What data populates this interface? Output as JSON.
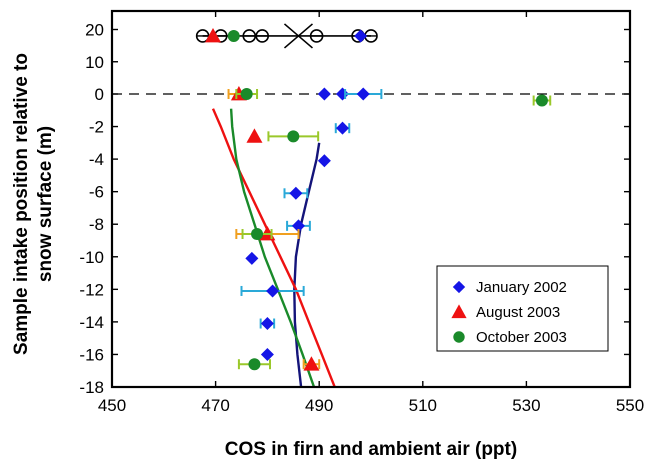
{
  "chart_data": {
    "type": "scatter",
    "xlabel": "COS in firn and ambient air (ppt)",
    "ylabel_lines": [
      "Sample intake position relative to",
      "snow surface (m)"
    ],
    "xlim": [
      450,
      550
    ],
    "ylim": [
      -18,
      24
    ],
    "xticks": [
      450,
      470,
      490,
      510,
      530,
      550
    ],
    "yticks": [
      20,
      10,
      0,
      -2,
      -4,
      -6,
      -8,
      -10,
      -12,
      -14,
      -16,
      -18
    ],
    "legend_position": "lower-right",
    "series": [
      {
        "name": "January 2002",
        "marker": "diamond",
        "color": "#1515e6",
        "errorbar_color": "#2aa9d8",
        "points": [
          {
            "x": 498.0,
            "y": 18.0,
            "xerr": 0
          },
          {
            "x": 491.0,
            "y": 0.0,
            "xerr": 0
          },
          {
            "x": 494.5,
            "y": 0.0,
            "xerr": 0
          },
          {
            "x": 498.5,
            "y": 0.0,
            "xerr": 3.5
          },
          {
            "x": 494.5,
            "y": -2.1,
            "xerr": 1.3
          },
          {
            "x": 491.0,
            "y": -4.1,
            "xerr": 0
          },
          {
            "x": 485.5,
            "y": -6.1,
            "xerr": 2.2
          },
          {
            "x": 486.0,
            "y": -8.1,
            "xerr": 2.2
          },
          {
            "x": 477.0,
            "y": -10.1,
            "xerr": 0
          },
          {
            "x": 481.0,
            "y": -12.1,
            "xerr": 6.0
          },
          {
            "x": 480.0,
            "y": -14.1,
            "xerr": 1.3
          },
          {
            "x": 480.0,
            "y": -16.0,
            "xerr": 0
          }
        ]
      },
      {
        "name": "August 2003",
        "marker": "triangle",
        "color": "#ee1111",
        "errorbar_color": "#f0a020",
        "points": [
          {
            "x": 469.5,
            "y": 18.0,
            "xerr": 0
          },
          {
            "x": 474.5,
            "y": 0.0,
            "xerr": 2.0
          },
          {
            "x": 477.5,
            "y": -2.6,
            "xerr": 0
          },
          {
            "x": 480.0,
            "y": -8.6,
            "xerr": 6.0
          },
          {
            "x": 488.5,
            "y": -16.6,
            "xerr": 1.5
          }
        ]
      },
      {
        "name": "October 2003",
        "marker": "circle",
        "color": "#1a8a2a",
        "errorbar_color": "#9ac82a",
        "points": [
          {
            "x": 473.5,
            "y": 18.0,
            "xerr": 0
          },
          {
            "x": 476.0,
            "y": 0.0,
            "xerr": 2.0
          },
          {
            "x": 533.0,
            "y": -0.4,
            "xerr": 1.6
          },
          {
            "x": 485.0,
            "y": -2.6,
            "xerr": 4.8
          },
          {
            "x": 478.0,
            "y": -8.6,
            "xerr": 2.8
          },
          {
            "x": 477.5,
            "y": -16.6,
            "xerr": 3.0
          }
        ]
      }
    ],
    "ambient_open_circles": {
      "y": 18.0,
      "x": [
        467.5,
        471.0,
        476.5,
        479.0,
        489.5,
        497.5,
        500.0
      ],
      "line_from": 467.5,
      "line_to": 500.0,
      "cross_x": 486.0
    },
    "snow_surface_line": {
      "y": 0,
      "style": "dashed"
    },
    "fit_curves": [
      {
        "color": "#14147a",
        "points": [
          [
            490,
            -3
          ],
          [
            489.5,
            -4
          ],
          [
            488,
            -6
          ],
          [
            486.5,
            -8
          ],
          [
            485.5,
            -10
          ],
          [
            485.2,
            -12
          ],
          [
            485.3,
            -14
          ],
          [
            485.8,
            -16
          ],
          [
            486.5,
            -18
          ]
        ]
      },
      {
        "color": "#ee1111",
        "points": [
          [
            469.5,
            -0.9
          ],
          [
            471,
            -2
          ],
          [
            473.5,
            -4
          ],
          [
            476.5,
            -6
          ],
          [
            479.5,
            -8
          ],
          [
            482.5,
            -10
          ],
          [
            485.5,
            -12
          ],
          [
            488,
            -14
          ],
          [
            490.5,
            -16
          ],
          [
            493,
            -18
          ]
        ]
      },
      {
        "color": "#1a8a2a",
        "points": [
          [
            473,
            -0.9
          ],
          [
            473.2,
            -2
          ],
          [
            474,
            -4
          ],
          [
            475.5,
            -6
          ],
          [
            477.5,
            -8
          ],
          [
            479.5,
            -10
          ],
          [
            482,
            -12
          ],
          [
            484.5,
            -14
          ],
          [
            486.8,
            -16
          ],
          [
            489,
            -18
          ]
        ]
      }
    ]
  }
}
